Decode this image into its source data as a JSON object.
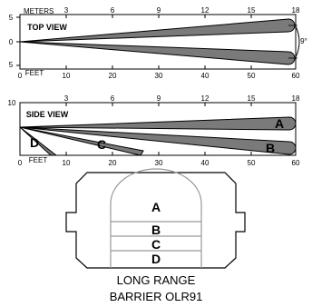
{
  "top_view": {
    "title": "TOP VIEW",
    "meters_label": "METERS",
    "feet_label": "FEET",
    "meter_ticks": [
      "3",
      "6",
      "9",
      "12",
      "15",
      "18"
    ],
    "feet_ticks": [
      "0",
      "10",
      "20",
      "30",
      "40",
      "50",
      "60"
    ],
    "y_ticks": [
      "5",
      "0",
      "5"
    ],
    "angle_label": "9°"
  },
  "side_view": {
    "title": "SIDE VIEW",
    "feet_label": "FEET",
    "meter_ticks": [
      "3",
      "6",
      "9",
      "12",
      "15",
      "18"
    ],
    "feet_ticks": [
      "0",
      "10",
      "20",
      "30",
      "40",
      "50",
      "60"
    ],
    "y_tick": "10",
    "beams": [
      "A",
      "B",
      "C",
      "D"
    ]
  },
  "lens": {
    "zones": [
      "A",
      "B",
      "C",
      "D"
    ]
  },
  "caption": {
    "line1": "LONG RANGE",
    "line2": "BARRIER OLR91"
  }
}
